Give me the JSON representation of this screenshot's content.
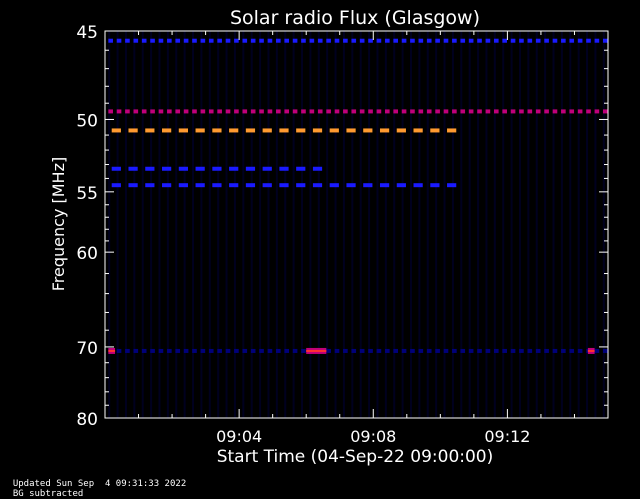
{
  "chart_data": {
    "type": "heatmap",
    "title": "Solar radio Flux (Glasgow)",
    "xlabel": "Start Time (04-Sep-22 09:00:00)",
    "ylabel": "Frequency [MHz]",
    "x_ticks": [
      "09:04",
      "09:08",
      "09:12"
    ],
    "x_tick_minutes": [
      4,
      8,
      12
    ],
    "y_ticks": [
      45,
      50,
      55,
      60,
      70,
      80
    ],
    "y_scale": "reciprocal",
    "xlim_minutes": [
      0,
      15
    ],
    "ylim_mhz": [
      80,
      45
    ],
    "colormap": [
      "#000000",
      "#00007a",
      "#1a1aff",
      "#c0007a",
      "#ff3030",
      "#ff9a30",
      "#ffd070"
    ],
    "bands": [
      {
        "freq": 45.5,
        "intensity": 0.25,
        "t_start": 0.1,
        "t_end": 15.0,
        "period": 0.25
      },
      {
        "freq": 49.5,
        "intensity": 0.45,
        "t_start": 0.1,
        "t_end": 15.0,
        "period": 0.25
      },
      {
        "freq": 50.7,
        "intensity": 0.9,
        "t_start": 0.2,
        "t_end": 10.5,
        "period": 0.5
      },
      {
        "freq": 53.3,
        "intensity": 0.4,
        "t_start": 0.2,
        "t_end": 6.3,
        "period": 0.5
      },
      {
        "freq": 54.5,
        "intensity": 0.35,
        "t_start": 0.2,
        "t_end": 10.5,
        "period": 0.5
      },
      {
        "freq": 70.5,
        "intensity": 0.2,
        "t_start": 0.1,
        "t_end": 15.0,
        "period": 0.25
      }
    ],
    "bursts": [
      {
        "freq": 70.5,
        "t_start": 0.1,
        "t_end": 0.3,
        "intensity": 0.7
      },
      {
        "freq": 70.5,
        "t_start": 6.0,
        "t_end": 6.6,
        "intensity": 0.8
      },
      {
        "freq": 70.5,
        "t_start": 14.4,
        "t_end": 14.6,
        "intensity": 0.7
      }
    ]
  },
  "footer": {
    "updated": "Updated Sun Sep  4 09:31:33 2022",
    "note": "BG subtracted"
  },
  "colors": {
    "axis": "#ffffff",
    "background": "#000000"
  }
}
